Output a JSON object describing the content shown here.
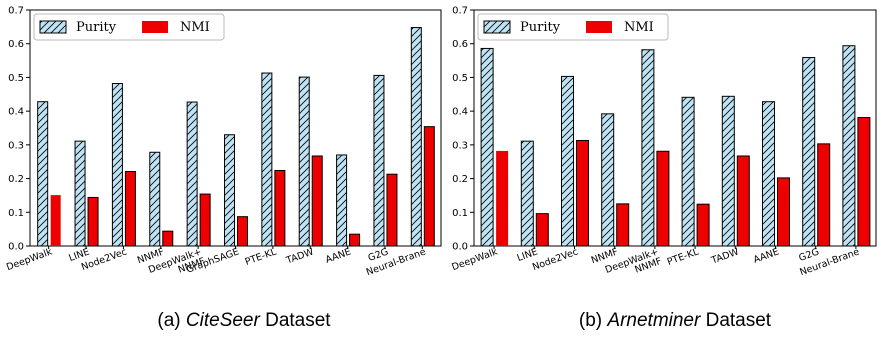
{
  "colors": {
    "purity_fill": "#bfe3f5",
    "nmi_fill": "#ee0000",
    "edge": "#000000"
  },
  "chart_data": [
    {
      "type": "bar",
      "caption_prefix": "(a) ",
      "caption_name": "CiteSeer",
      "caption_suffix": " Dataset",
      "categories": [
        "DeepWalk",
        "LINE",
        "Node2Vec",
        "NNMF",
        [
          "DeepWalk+",
          "NNMF"
        ],
        "GraphSAGE",
        "PTE-KL",
        "TADW",
        "AANE",
        "G2G",
        "Neural-Brane"
      ],
      "series": [
        {
          "name": "Purity",
          "values": [
            0.428,
            0.311,
            0.482,
            0.278,
            0.427,
            0.33,
            0.513,
            0.501,
            0.27,
            0.506,
            0.648
          ]
        },
        {
          "name": "NMI",
          "values": [
            0.151,
            0.144,
            0.221,
            0.044,
            0.154,
            0.087,
            0.224,
            0.267,
            0.035,
            0.213,
            0.354
          ]
        }
      ],
      "ylim": [
        0,
        0.7
      ],
      "yticks": [
        "0.0",
        "0.1",
        "0.2",
        "0.3",
        "0.4",
        "0.5",
        "0.6",
        "0.7"
      ],
      "legend": "top-left"
    },
    {
      "type": "bar",
      "caption_prefix": "(b) ",
      "caption_name": "Arnetminer",
      "caption_suffix": " Dataset",
      "categories": [
        "DeepWalk",
        "LINE",
        "Node2Vec",
        "NNMF",
        [
          "DeepWalk+",
          "NNMF"
        ],
        "PTE-KL",
        "TADW",
        "AANE",
        "G2G",
        "Neural-Brane"
      ],
      "series": [
        {
          "name": "Purity",
          "values": [
            0.586,
            0.311,
            0.503,
            0.392,
            0.582,
            0.441,
            0.444,
            0.428,
            0.559,
            0.594
          ]
        },
        {
          "name": "NMI",
          "values": [
            0.282,
            0.096,
            0.313,
            0.125,
            0.281,
            0.124,
            0.267,
            0.202,
            0.303,
            0.381
          ]
        }
      ],
      "ylim": [
        0,
        0.7
      ],
      "yticks": [
        "0.0",
        "0.1",
        "0.2",
        "0.3",
        "0.4",
        "0.5",
        "0.6",
        "0.7"
      ],
      "legend": "top-left"
    }
  ]
}
